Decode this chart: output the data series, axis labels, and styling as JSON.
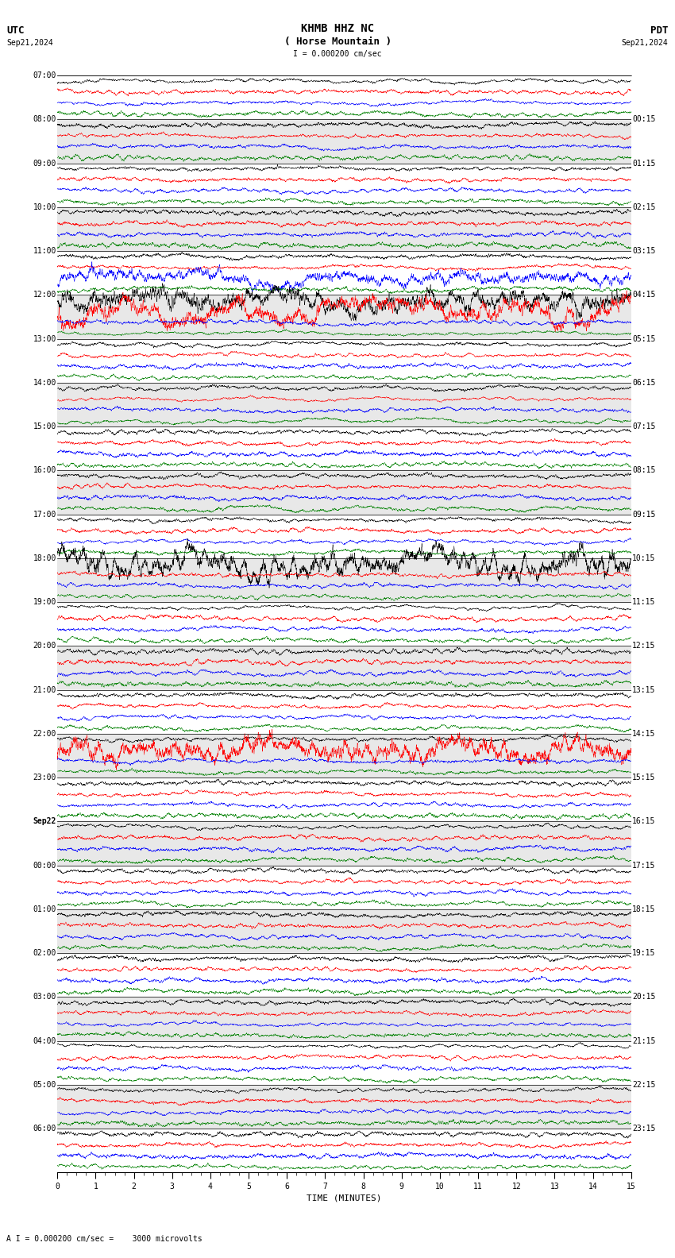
{
  "title_line1": "KHMB HHZ NC",
  "title_line2": "( Horse Mountain )",
  "scale_label": "I = 0.000200 cm/sec",
  "utc_label": "UTC",
  "utc_date": "Sep21,2024",
  "pdt_label": "PDT",
  "pdt_date": "Sep21,2024",
  "bottom_label": "A I = 0.000200 cm/sec =    3000 microvolts",
  "xlabel": "TIME (MINUTES)",
  "left_times": [
    "07:00",
    "08:00",
    "09:00",
    "10:00",
    "11:00",
    "12:00",
    "13:00",
    "14:00",
    "15:00",
    "16:00",
    "17:00",
    "18:00",
    "19:00",
    "20:00",
    "21:00",
    "22:00",
    "23:00",
    "Sep22",
    "00:00",
    "01:00",
    "02:00",
    "03:00",
    "04:00",
    "05:00",
    "06:00"
  ],
  "right_times": [
    "00:15",
    "01:15",
    "02:15",
    "03:15",
    "04:15",
    "05:15",
    "06:15",
    "07:15",
    "08:15",
    "09:15",
    "10:15",
    "11:15",
    "12:15",
    "13:15",
    "14:15",
    "15:15",
    "16:15",
    "17:15",
    "18:15",
    "19:15",
    "20:15",
    "21:15",
    "22:15",
    "23:15"
  ],
  "colors": [
    "black",
    "red",
    "blue",
    "green"
  ],
  "n_rows": 25,
  "n_traces_per_row": 4,
  "background_color": "white",
  "band_color": "#e8e8e8",
  "trace_amplitude": 0.38,
  "font_size_title": 10,
  "font_size_labels": 7,
  "font_size_axis": 7,
  "xmin": 0,
  "xmax": 15,
  "figwidth": 8.5,
  "figheight": 15.84,
  "dpi": 100,
  "event_rows": [
    {
      "row": 4,
      "trace": 2,
      "amp_scale": 4.0
    },
    {
      "row": 5,
      "trace": 0,
      "amp_scale": 5.0
    },
    {
      "row": 5,
      "trace": 1,
      "amp_scale": 5.0
    },
    {
      "row": 11,
      "trace": 0,
      "amp_scale": 6.0
    },
    {
      "row": 15,
      "trace": 1,
      "amp_scale": 5.0
    }
  ]
}
